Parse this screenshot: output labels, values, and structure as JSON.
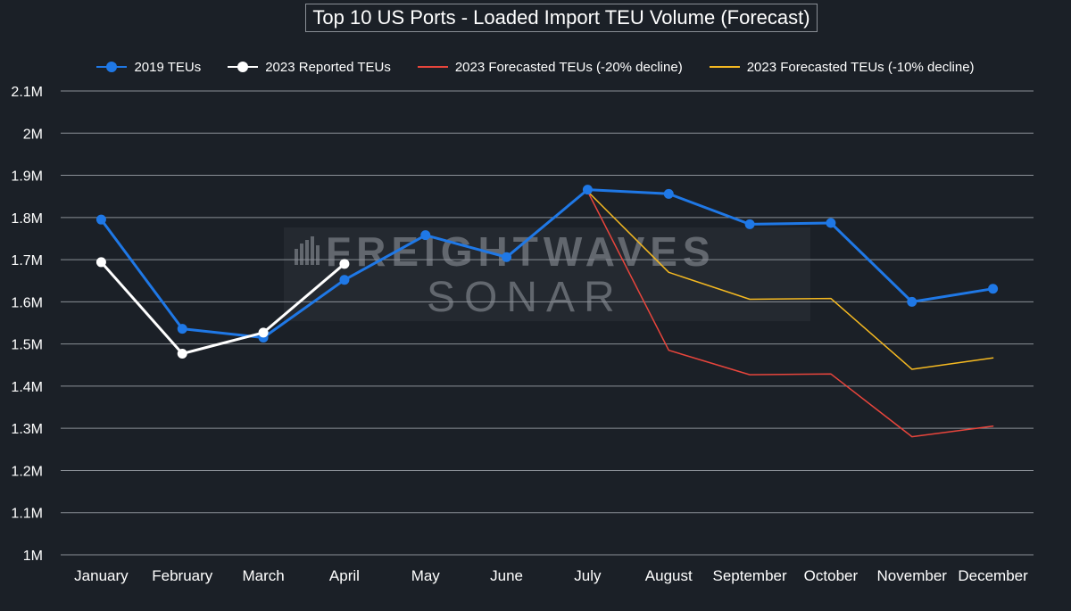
{
  "title": "Top 10 US Ports -  Loaded Import TEU Volume (Forecast)",
  "watermark": {
    "line1": "FREIGHTWAVES",
    "line2": "SONAR"
  },
  "legend": [
    {
      "label": "2019 TEUs",
      "color": "#1f78e6",
      "marker": true
    },
    {
      "label": "2023 Reported TEUs",
      "color": "#ffffff",
      "marker": true
    },
    {
      "label": "2023 Forecasted TEUs (-20% decline)",
      "color": "#e8453c",
      "marker": false
    },
    {
      "label": "2023 Forecasted TEUs (-10% decline)",
      "color": "#f5b921",
      "marker": false
    }
  ],
  "chart_data": {
    "type": "line",
    "title": "Top 10 US Ports -  Loaded Import TEU Volume (Forecast)",
    "xlabel": "",
    "ylabel": "",
    "categories": [
      "January",
      "February",
      "March",
      "April",
      "May",
      "June",
      "July",
      "August",
      "September",
      "October",
      "November",
      "December"
    ],
    "y_ticks": [
      1.0,
      1.1,
      1.2,
      1.3,
      1.4,
      1.5,
      1.6,
      1.7,
      1.8,
      1.9,
      2.0,
      2.1
    ],
    "y_tick_labels": [
      "1M",
      "1.1M",
      "1.2M",
      "1.3M",
      "1.4M",
      "1.5M",
      "1.6M",
      "1.7M",
      "1.8M",
      "1.9M",
      "2M",
      "2.1M"
    ],
    "ylim": [
      1.0,
      2.1
    ],
    "y_unit": "million TEUs",
    "grid": true,
    "legend_position": "top",
    "series": [
      {
        "name": "2019 TEUs",
        "color": "#1f78e6",
        "width": 3,
        "markers": true,
        "values": [
          1.795,
          1.536,
          1.515,
          1.652,
          1.758,
          1.706,
          1.866,
          1.856,
          1.784,
          1.787,
          1.6,
          1.631
        ]
      },
      {
        "name": "2023 Reported TEUs",
        "color": "#ffffff",
        "width": 3,
        "markers": true,
        "values": [
          1.694,
          1.477,
          1.527,
          1.69,
          null,
          null,
          null,
          null,
          null,
          null,
          null,
          null
        ]
      },
      {
        "name": "2023 Forecasted TEUs (-20% decline)",
        "color": "#e8453c",
        "width": 1.5,
        "markers": false,
        "values": [
          null,
          null,
          null,
          null,
          null,
          null,
          1.862,
          1.485,
          1.427,
          1.429,
          1.28,
          1.305
        ]
      },
      {
        "name": "2023 Forecasted TEUs (-10% decline)",
        "color": "#f5b921",
        "width": 1.5,
        "markers": false,
        "values": [
          null,
          null,
          null,
          null,
          null,
          null,
          1.862,
          1.67,
          1.606,
          1.608,
          1.44,
          1.467
        ]
      }
    ]
  }
}
